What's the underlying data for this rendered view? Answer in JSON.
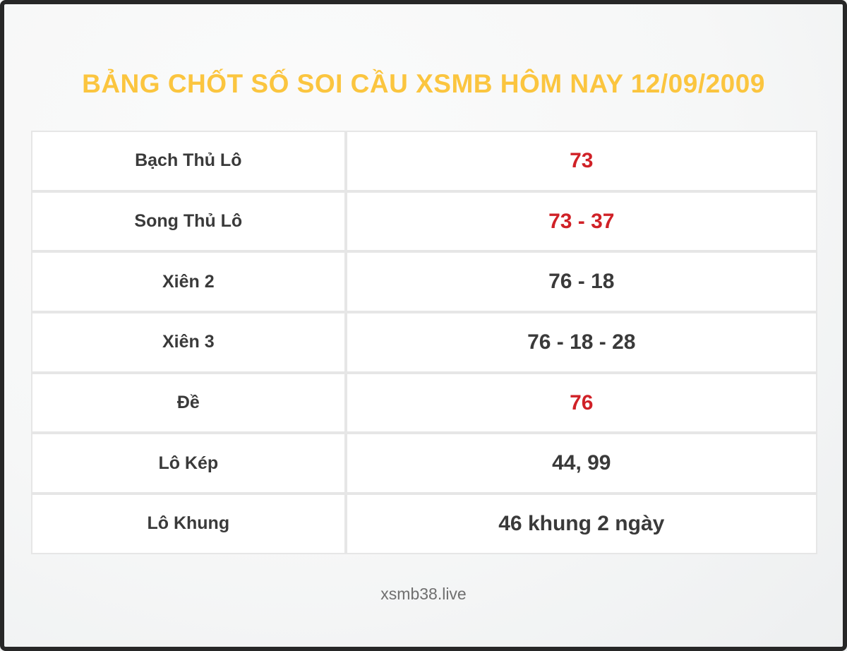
{
  "page": {
    "title": "BẢNG CHỐT SỐ SOI CẦU XSMB HÔM NAY 12/09/2009",
    "footer_text": "xsmb38.live"
  },
  "table": {
    "rows": [
      {
        "label": "Bạch Thủ Lô",
        "value": "73",
        "value_color": "red"
      },
      {
        "label": "Song Thủ Lô",
        "value": "73 - 37",
        "value_color": "red"
      },
      {
        "label": "Xiên 2",
        "value": "76 - 18",
        "value_color": "dark"
      },
      {
        "label": "Xiên 3",
        "value": "76 - 18 - 28",
        "value_color": "dark"
      },
      {
        "label": "Đề",
        "value": "76",
        "value_color": "red"
      },
      {
        "label": "Lô Kép",
        "value": "44, 99",
        "value_color": "dark"
      },
      {
        "label": "Lô Khung",
        "value": "46 khung 2 ngày",
        "value_color": "dark"
      }
    ]
  },
  "colors": {
    "title_gold": "#FBC53F",
    "value_red": "#D02127",
    "value_dark": "#3A3A3A",
    "footer_gray": "#6F6F6F",
    "frame_border": "#272727",
    "cell_border": "#E6E6E6",
    "cell_background": "#FFFFFF"
  },
  "chart_data": {
    "type": "table",
    "title": "BẢNG CHỐT SỐ SOI CẦU XSMB HÔM NAY 12/09/2009",
    "rows": [
      [
        "Bạch Thủ Lô",
        "73"
      ],
      [
        "Song Thủ Lô",
        "73 - 37"
      ],
      [
        "Xiên 2",
        "76 - 18"
      ],
      [
        "Xiên 3",
        "76 - 18 - 28"
      ],
      [
        "Đề",
        "76"
      ],
      [
        "Lô Kép",
        "44, 99"
      ],
      [
        "Lô Khung",
        "46 khung 2 ngày"
      ]
    ],
    "highlighted_red_rows": [
      "Bạch Thủ Lô",
      "Song Thủ Lô",
      "Đề"
    ],
    "footer_text": "xsmb38.live",
    "layout": "two-column label/value table, no header row, grid on"
  }
}
